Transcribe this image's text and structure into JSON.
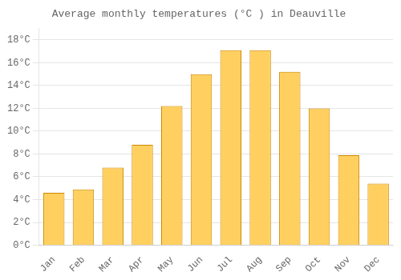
{
  "chart_data": {
    "type": "bar",
    "title": "Average monthly temperatures (°C ) in Deauville",
    "categories": [
      "Jan",
      "Feb",
      "Mar",
      "Apr",
      "May",
      "Jun",
      "Jul",
      "Aug",
      "Sep",
      "Oct",
      "Nov",
      "Dec"
    ],
    "values": [
      4.6,
      4.9,
      6.8,
      8.8,
      12.2,
      15.0,
      17.1,
      17.1,
      15.2,
      12.0,
      7.9,
      5.4
    ],
    "color": "#FFD060",
    "ylim": [
      0,
      19
    ],
    "yticks": [
      {
        "value": 0,
        "label": "0°C"
      },
      {
        "value": 2,
        "label": "2°C"
      },
      {
        "value": 4,
        "label": "4°C"
      },
      {
        "value": 6,
        "label": "6°C"
      },
      {
        "value": 8,
        "label": "8°C"
      },
      {
        "value": 10,
        "label": "10°C"
      },
      {
        "value": 12,
        "label": "12°C"
      },
      {
        "value": 14,
        "label": "14°C"
      },
      {
        "value": 16,
        "label": "16°C"
      },
      {
        "value": 18,
        "label": "18°C"
      }
    ],
    "grid": true
  }
}
